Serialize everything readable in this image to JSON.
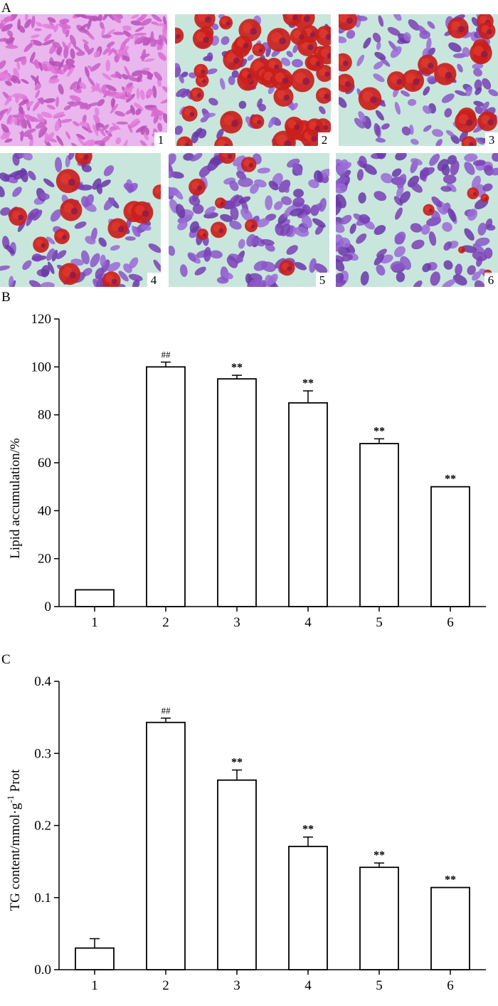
{
  "panels": {
    "a": {
      "letter": "A",
      "image_labels": [
        "1",
        "2",
        "3",
        "4",
        "5",
        "6"
      ]
    },
    "b": {
      "letter": "B"
    },
    "c": {
      "letter": "C"
    }
  },
  "chart_data": [
    {
      "type": "bar",
      "categories": [
        "1",
        "2",
        "3",
        "4",
        "5",
        "6"
      ],
      "values": [
        7,
        100,
        95,
        85,
        68,
        50
      ],
      "errors": [
        0,
        2,
        1.5,
        5,
        2,
        0
      ],
      "annotations": [
        "",
        "##",
        "**",
        "**",
        "**",
        "**"
      ],
      "ylabel": "Lipid accumulation/%",
      "xlabel": "",
      "ylim": [
        0,
        120
      ],
      "yticks": [
        0,
        20,
        40,
        60,
        80,
        100,
        120
      ],
      "ytick_labels": [
        "0",
        "20",
        "40",
        "60",
        "80",
        "100",
        "120"
      ],
      "grid": false
    },
    {
      "type": "bar",
      "categories": [
        "1",
        "2",
        "3",
        "4",
        "5",
        "6"
      ],
      "values": [
        0.03,
        0.343,
        0.263,
        0.171,
        0.142,
        0.114
      ],
      "errors": [
        0.013,
        0.006,
        0.014,
        0.013,
        0.006,
        0
      ],
      "annotations": [
        "",
        "##",
        "**",
        "**",
        "**",
        "**"
      ],
      "ylabel": "TG content/mmol·g",
      "ylabel_sup": "-1",
      "ylabel_suffix": " Prot",
      "xlabel": "",
      "ylim": [
        0,
        0.4
      ],
      "yticks": [
        0,
        0.1,
        0.2,
        0.3,
        0.4
      ],
      "ytick_labels": [
        "0.0",
        "0.1",
        "0.2",
        "0.3",
        "0.4"
      ],
      "grid": false
    }
  ],
  "colors": {
    "bar_fill": "#ffffff",
    "stroke": "#000000",
    "stain_background": "#c9e6dc",
    "stain_nucleus": "#7a3fb5",
    "stain_lipid": "#c8201c",
    "stain_control": "#d86ad0"
  }
}
